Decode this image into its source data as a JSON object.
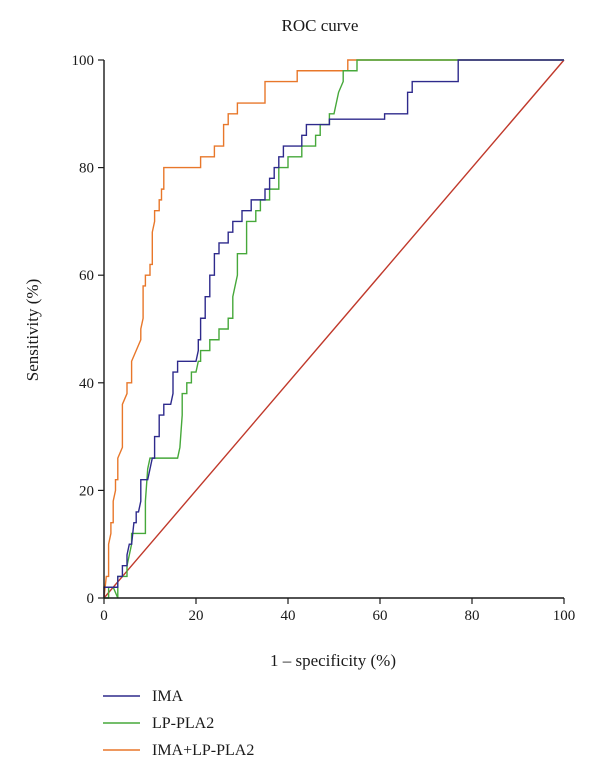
{
  "chart_data": {
    "type": "line",
    "title": "ROC curve",
    "xlabel": "1 – specificity (%)",
    "ylabel": "Sensitivity (%)",
    "xlim": [
      0,
      100
    ],
    "ylim": [
      0,
      100
    ],
    "xticks": [
      "0",
      "20",
      "40",
      "60",
      "80",
      "100"
    ],
    "yticks": [
      "0",
      "20",
      "40",
      "60",
      "80",
      "100"
    ],
    "grid": false,
    "legend_position": "bottom-left",
    "series": [
      {
        "name": "IMA",
        "color": "#2e2a8c",
        "x": [
          0,
          0,
          2,
          3,
          3,
          4,
          4,
          5,
          5,
          5.5,
          6,
          6.5,
          7,
          7,
          7.5,
          8,
          8,
          9.5,
          10,
          10.5,
          11,
          11,
          12,
          12,
          13,
          13,
          14.5,
          15,
          15,
          16,
          16,
          20,
          20.5,
          20.5,
          21,
          21,
          22,
          22,
          23,
          23,
          24,
          24,
          25,
          25,
          27,
          27,
          28,
          28,
          29,
          29,
          30,
          30,
          32,
          32,
          33,
          33,
          35,
          35,
          36,
          36,
          37,
          37,
          38,
          38,
          39,
          39,
          40,
          40,
          42,
          42,
          43,
          43,
          44,
          44,
          46,
          46,
          49,
          49,
          61,
          61,
          66,
          66,
          67,
          67,
          77,
          77,
          100
        ],
        "y": [
          0,
          2,
          2,
          2,
          4,
          4,
          6,
          6,
          8,
          10,
          10,
          14,
          14,
          16,
          16,
          18,
          22,
          22,
          24,
          26,
          26,
          30,
          30,
          34,
          34,
          36,
          36,
          38,
          42,
          42,
          44,
          44,
          46,
          48,
          48,
          52,
          52,
          56,
          56,
          60,
          60,
          64,
          64,
          66,
          66,
          68,
          68,
          70,
          70,
          70,
          70,
          72,
          72,
          74,
          74,
          74,
          74,
          76,
          76,
          78,
          78,
          80,
          80,
          82,
          82,
          84,
          84,
          84,
          84,
          84,
          84,
          86,
          86,
          88,
          88,
          88,
          88,
          89,
          89,
          90,
          90,
          94,
          94,
          96,
          96,
          100,
          100
        ]
      },
      {
        "name": "LP-PLA2",
        "color": "#46a83a",
        "x": [
          0,
          1,
          1,
          2,
          3,
          3,
          5,
          5,
          5.5,
          6,
          6,
          7,
          8,
          9,
          9,
          9.5,
          10,
          11,
          16,
          16.5,
          17,
          17,
          18,
          18,
          19,
          19,
          20,
          20.5,
          21,
          21,
          22,
          22,
          23,
          23,
          25,
          25,
          27,
          27,
          28,
          28,
          29,
          29,
          31,
          31,
          33,
          33,
          34,
          34,
          36,
          36,
          38,
          38,
          40,
          40,
          43,
          43,
          46,
          46,
          47,
          47,
          49,
          49,
          50,
          51,
          52,
          52,
          55,
          55,
          100
        ],
        "y": [
          0,
          0,
          2,
          2,
          0,
          4,
          4,
          6,
          8,
          10,
          12,
          12,
          12,
          12,
          18,
          24,
          26,
          26,
          26,
          28,
          34,
          38,
          38,
          40,
          40,
          42,
          42,
          44,
          44,
          46,
          46,
          46,
          46,
          48,
          48,
          50,
          50,
          52,
          52,
          56,
          60,
          64,
          64,
          70,
          70,
          72,
          72,
          74,
          74,
          76,
          76,
          80,
          80,
          82,
          82,
          84,
          84,
          86,
          86,
          88,
          88,
          90,
          90,
          94,
          96,
          98,
          98,
          100,
          100
        ]
      },
      {
        "name": "IMA+LP-PLA2",
        "color": "#e8772a",
        "x": [
          0,
          0.5,
          1,
          1,
          1.5,
          1.5,
          2,
          2,
          2.5,
          2.5,
          3,
          3,
          4,
          4,
          5,
          5,
          6,
          6,
          7,
          7,
          8,
          8,
          8.5,
          8.5,
          9,
          9,
          10,
          10,
          10.5,
          10.5,
          11,
          11,
          12,
          12,
          12.5,
          12.5,
          13,
          13,
          20,
          20,
          21,
          21,
          24,
          24,
          26,
          26,
          27,
          27,
          28,
          28,
          29,
          29,
          35,
          35,
          39,
          39,
          42,
          42,
          52,
          52,
          53,
          53,
          100
        ],
        "y": [
          0,
          4,
          4,
          10,
          12,
          14,
          14,
          18,
          20,
          22,
          22,
          26,
          28,
          36,
          38,
          40,
          40,
          44,
          46,
          46,
          48,
          50,
          52,
          58,
          58,
          60,
          60,
          62,
          62,
          68,
          70,
          72,
          72,
          74,
          74,
          76,
          76,
          80,
          80,
          80,
          80,
          82,
          82,
          84,
          84,
          88,
          88,
          90,
          90,
          90,
          90,
          92,
          92,
          96,
          96,
          96,
          96,
          98,
          98,
          98,
          98,
          100,
          100
        ]
      },
      {
        "name": "",
        "color": "#c0392b",
        "x": [
          0,
          100
        ],
        "y": [
          0,
          100
        ]
      }
    ]
  }
}
